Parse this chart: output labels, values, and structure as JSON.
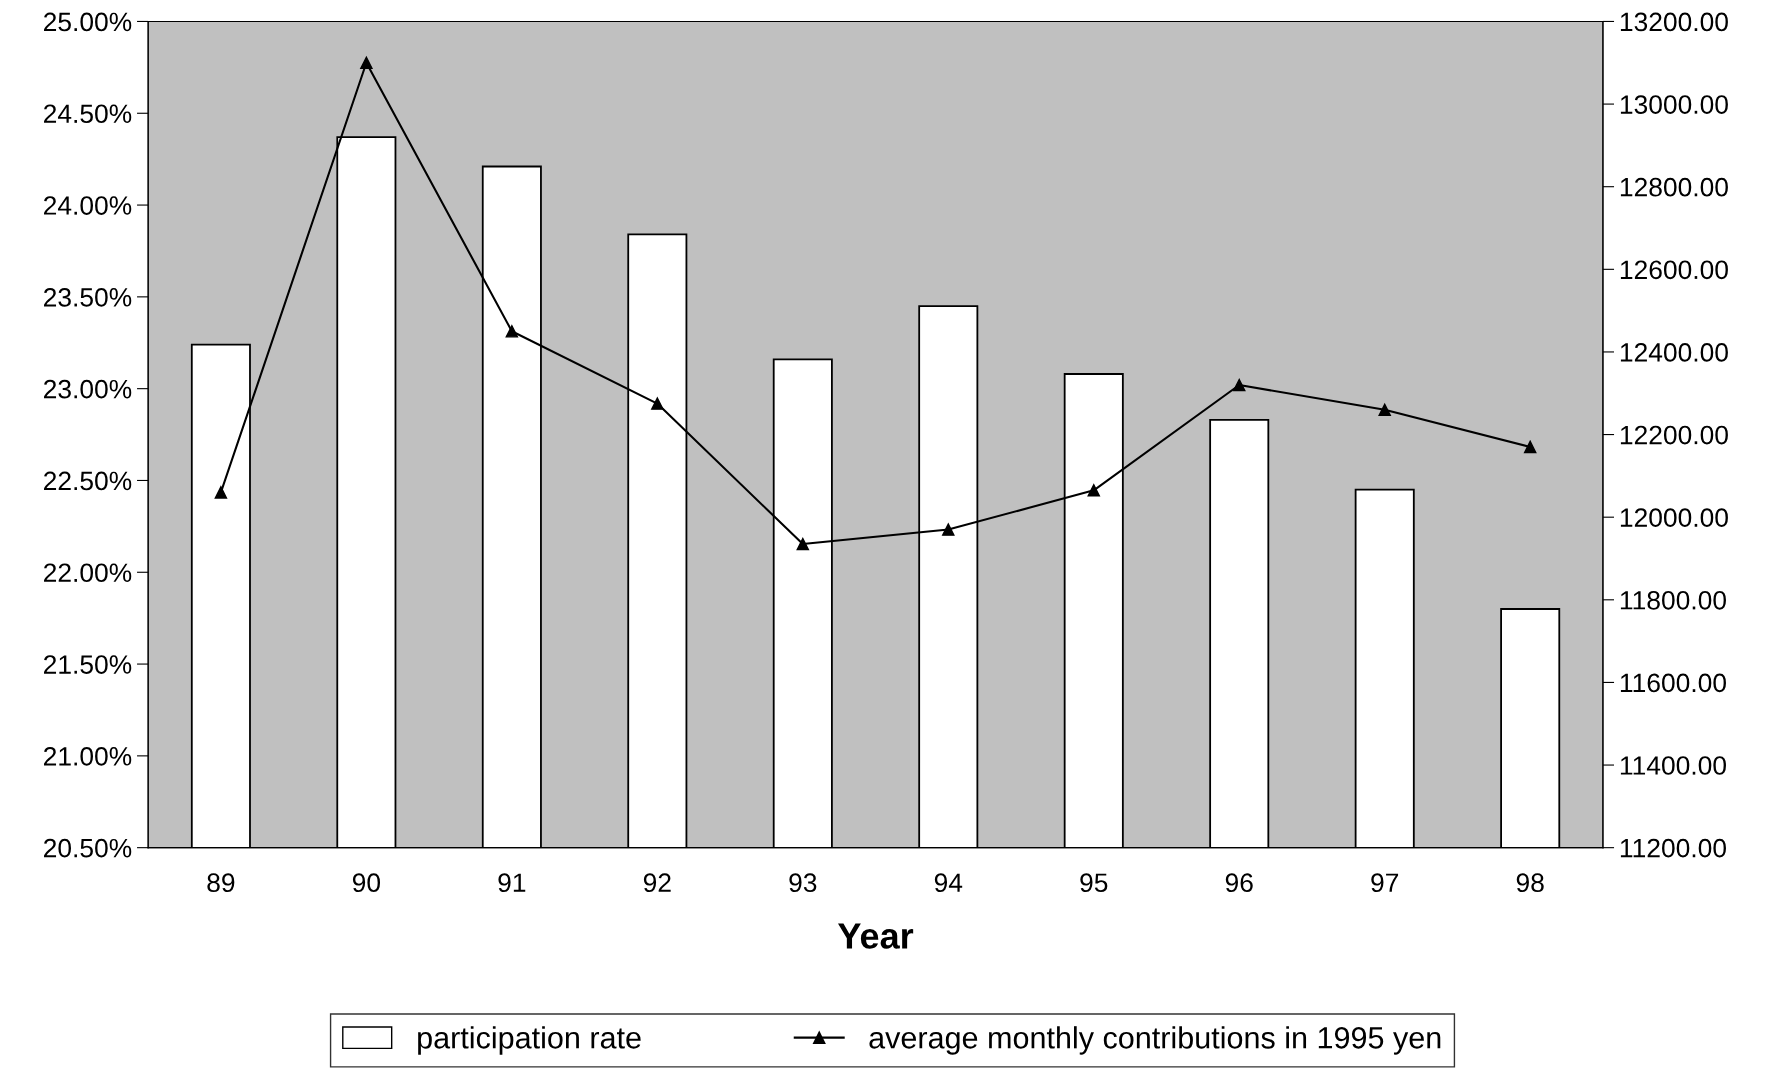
{
  "chart_data": {
    "type": "bar",
    "xlabel": "Year",
    "categories": [
      "89",
      "90",
      "91",
      "92",
      "93",
      "94",
      "95",
      "96",
      "97",
      "98"
    ],
    "series": [
      {
        "name": "participation rate",
        "color": "#ffffff",
        "values": [
          23.24,
          24.37,
          24.21,
          23.84,
          23.16,
          23.45,
          23.08,
          22.83,
          22.45,
          21.8
        ]
      },
      {
        "name": "average monthly contributions in 1995 yen",
        "type": "line",
        "axis": "y2",
        "color": "#000000",
        "marker": "triangle",
        "values": [
          12060,
          13100,
          12450,
          12275,
          11935,
          11970,
          12065,
          12320,
          12260,
          12170
        ]
      }
    ],
    "ylim": [
      20.5,
      25.0
    ],
    "yticks": [
      {
        "value": 20.5,
        "label": "20.50%"
      },
      {
        "value": 21.0,
        "label": "21.00%"
      },
      {
        "value": 21.5,
        "label": "21.50%"
      },
      {
        "value": 22.0,
        "label": "22.00%"
      },
      {
        "value": 22.5,
        "label": "22.50%"
      },
      {
        "value": 23.0,
        "label": "23.00%"
      },
      {
        "value": 23.5,
        "label": "23.50%"
      },
      {
        "value": 24.0,
        "label": "24.00%"
      },
      {
        "value": 24.5,
        "label": "24.50%"
      },
      {
        "value": 25.0,
        "label": "25.00%"
      }
    ],
    "y2lim": [
      11200,
      13200
    ],
    "y2ticks": [
      {
        "value": 11200,
        "label": "11200.00"
      },
      {
        "value": 11400,
        "label": "11400.00"
      },
      {
        "value": 11600,
        "label": "11600.00"
      },
      {
        "value": 11800,
        "label": "11800.00"
      },
      {
        "value": 12000,
        "label": "12000.00"
      },
      {
        "value": 12200,
        "label": "12200.00"
      },
      {
        "value": 12400,
        "label": "12400.00"
      },
      {
        "value": 12600,
        "label": "12600.00"
      },
      {
        "value": 12800,
        "label": "12800.00"
      },
      {
        "value": 13000,
        "label": "13000.00"
      },
      {
        "value": 13200,
        "label": "13200.00"
      }
    ],
    "grid": false,
    "legend": "bottom"
  }
}
